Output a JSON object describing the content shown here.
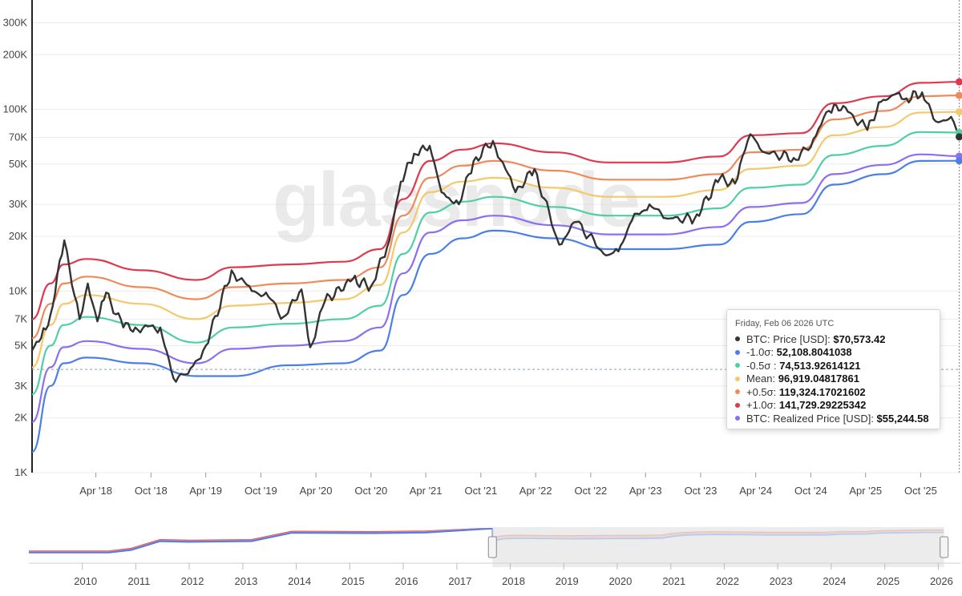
{
  "watermark": "glassnode",
  "chart_data": {
    "type": "line",
    "y_scale": "log",
    "ylim": [
      1000,
      400000
    ],
    "y_ticks": [
      {
        "value": 1000,
        "label": "1K"
      },
      {
        "value": 2000,
        "label": "2K"
      },
      {
        "value": 3000,
        "label": "3K"
      },
      {
        "value": 5000,
        "label": "5K"
      },
      {
        "value": 7000,
        "label": "7K"
      },
      {
        "value": 10000,
        "label": "10K"
      },
      {
        "value": 20000,
        "label": "20K"
      },
      {
        "value": 30000,
        "label": "30K"
      },
      {
        "value": 50000,
        "label": "50K"
      },
      {
        "value": 70000,
        "label": "70K"
      },
      {
        "value": 100000,
        "label": "100K"
      },
      {
        "value": 200000,
        "label": "200K"
      },
      {
        "value": 300000,
        "label": "300K"
      }
    ],
    "xlim": [
      "2017-09-01",
      "2026-02-10"
    ],
    "x_ticks": [
      {
        "date": "2018-04-01",
        "label": "Apr '18"
      },
      {
        "date": "2018-10-01",
        "label": "Oct '18"
      },
      {
        "date": "2019-04-01",
        "label": "Apr '19"
      },
      {
        "date": "2019-10-01",
        "label": "Oct '19"
      },
      {
        "date": "2020-04-01",
        "label": "Apr '20"
      },
      {
        "date": "2020-10-01",
        "label": "Oct '20"
      },
      {
        "date": "2021-04-01",
        "label": "Apr '21"
      },
      {
        "date": "2021-10-01",
        "label": "Oct '21"
      },
      {
        "date": "2022-04-01",
        "label": "Apr '22"
      },
      {
        "date": "2022-10-01",
        "label": "Oct '22"
      },
      {
        "date": "2023-04-01",
        "label": "Apr '23"
      },
      {
        "date": "2023-10-01",
        "label": "Oct '23"
      },
      {
        "date": "2024-04-01",
        "label": "Apr '24"
      },
      {
        "date": "2024-10-01",
        "label": "Oct '24"
      },
      {
        "date": "2025-04-01",
        "label": "Apr '25"
      },
      {
        "date": "2025-10-01",
        "label": "Oct '25"
      }
    ],
    "series": [
      {
        "key": "plus1",
        "color": "#e0384f",
        "x": [
          "2017-09-01",
          "2017-11-01",
          "2017-12-15",
          "2018-03-01",
          "2018-09-01",
          "2019-03-01",
          "2019-07-01",
          "2020-01-01",
          "2020-07-01",
          "2020-11-01",
          "2021-01-15",
          "2021-04-15",
          "2021-08-01",
          "2021-11-15",
          "2022-06-01",
          "2022-12-01",
          "2023-06-01",
          "2023-12-01",
          "2024-03-15",
          "2024-09-01",
          "2024-12-15",
          "2025-06-01",
          "2025-10-01",
          "2026-02-06"
        ],
        "y": [
          7000,
          11000,
          14000,
          15000,
          13000,
          11500,
          13500,
          14000,
          14500,
          17000,
          32000,
          52000,
          60000,
          65000,
          58000,
          51000,
          51000,
          55000,
          72000,
          74000,
          108000,
          118000,
          140000,
          141729
        ]
      },
      {
        "key": "plus05",
        "color": "#ef8a5a",
        "x": [
          "2017-09-01",
          "2017-11-01",
          "2017-12-15",
          "2018-03-01",
          "2018-09-01",
          "2019-03-01",
          "2019-07-01",
          "2020-01-01",
          "2020-07-01",
          "2020-11-01",
          "2021-01-15",
          "2021-04-15",
          "2021-08-01",
          "2021-11-15",
          "2022-06-01",
          "2022-12-01",
          "2023-06-01",
          "2023-12-01",
          "2024-03-15",
          "2024-09-01",
          "2024-12-15",
          "2025-06-01",
          "2025-10-01",
          "2026-02-06"
        ],
        "y": [
          5500,
          8500,
          11000,
          12000,
          10500,
          9000,
          10500,
          11000,
          11500,
          13500,
          26000,
          42000,
          49000,
          52000,
          46000,
          41000,
          41000,
          44000,
          58000,
          60000,
          88000,
          98000,
          118000,
          119324
        ]
      },
      {
        "key": "mean",
        "color": "#f5c86b",
        "x": [
          "2017-09-01",
          "2017-11-01",
          "2017-12-15",
          "2018-03-01",
          "2018-09-01",
          "2019-03-01",
          "2019-07-01",
          "2020-01-01",
          "2020-07-01",
          "2020-11-01",
          "2021-01-15",
          "2021-04-15",
          "2021-08-01",
          "2021-11-15",
          "2022-06-01",
          "2022-12-01",
          "2023-06-01",
          "2023-12-01",
          "2024-03-15",
          "2024-09-01",
          "2024-12-15",
          "2025-06-01",
          "2025-10-01",
          "2026-02-06"
        ],
        "y": [
          3800,
          6500,
          8500,
          9500,
          8500,
          7000,
          8300,
          8600,
          9000,
          10800,
          21000,
          35000,
          40000,
          42000,
          37000,
          33000,
          33000,
          36000,
          47000,
          49000,
          72000,
          80000,
          96000,
          96919
        ]
      },
      {
        "key": "minus05",
        "color": "#4fcfa3",
        "x": [
          "2017-09-01",
          "2017-11-01",
          "2017-12-15",
          "2018-03-01",
          "2018-09-01",
          "2019-03-01",
          "2019-07-01",
          "2020-01-01",
          "2020-07-01",
          "2020-11-01",
          "2021-01-15",
          "2021-04-15",
          "2021-08-01",
          "2021-11-15",
          "2022-06-01",
          "2022-12-01",
          "2023-06-01",
          "2023-12-01",
          "2024-03-15",
          "2024-09-01",
          "2024-12-15",
          "2025-06-01",
          "2025-10-01",
          "2026-02-06"
        ],
        "y": [
          2700,
          5000,
          6500,
          7200,
          6500,
          5200,
          6300,
          6600,
          7000,
          8300,
          16000,
          27000,
          31000,
          33000,
          29000,
          26000,
          26000,
          28500,
          37000,
          38500,
          56000,
          63000,
          75000,
          74513
        ]
      },
      {
        "key": "realized",
        "color": "#8b6ff0",
        "x": [
          "2017-09-01",
          "2017-11-01",
          "2017-12-15",
          "2018-03-01",
          "2018-09-01",
          "2019-03-01",
          "2019-07-01",
          "2020-01-01",
          "2020-07-01",
          "2020-11-01",
          "2021-01-15",
          "2021-04-15",
          "2021-08-01",
          "2021-11-15",
          "2022-06-01",
          "2022-12-01",
          "2023-06-01",
          "2023-12-01",
          "2024-03-15",
          "2024-09-01",
          "2024-12-15",
          "2025-06-01",
          "2025-10-01",
          "2026-02-06"
        ],
        "y": [
          1900,
          3800,
          4900,
          5300,
          4800,
          4000,
          4800,
          5000,
          5300,
          6300,
          12500,
          21000,
          24500,
          26000,
          23000,
          20500,
          20500,
          22500,
          29000,
          30500,
          44000,
          49500,
          56500,
          55244
        ]
      },
      {
        "key": "minus1",
        "color": "#4a7fe8",
        "x": [
          "2017-09-01",
          "2017-11-01",
          "2017-12-15",
          "2018-03-01",
          "2018-09-01",
          "2019-03-01",
          "2019-07-01",
          "2020-01-01",
          "2020-07-01",
          "2020-11-01",
          "2021-01-15",
          "2021-04-15",
          "2021-08-01",
          "2021-11-15",
          "2022-06-01",
          "2022-12-01",
          "2023-06-01",
          "2023-12-01",
          "2024-03-15",
          "2024-09-01",
          "2024-12-15",
          "2025-06-01",
          "2025-10-01",
          "2026-02-06"
        ],
        "y": [
          1300,
          3000,
          4000,
          4300,
          4000,
          3400,
          3400,
          3900,
          4000,
          4700,
          9500,
          16000,
          19500,
          21500,
          19500,
          17000,
          17000,
          18000,
          24000,
          26500,
          38500,
          44000,
          52000,
          52108
        ]
      },
      {
        "key": "price",
        "color": "#333333",
        "x": [
          "2017-09-01",
          "2017-10-01",
          "2017-11-01",
          "2017-12-17",
          "2018-02-06",
          "2018-03-05",
          "2018-04-06",
          "2018-05-05",
          "2018-07-01",
          "2018-08-10",
          "2018-11-01",
          "2018-12-15",
          "2019-02-01",
          "2019-04-01",
          "2019-06-26",
          "2019-09-01",
          "2019-10-26",
          "2019-12-15",
          "2020-02-13",
          "2020-03-13",
          "2020-05-01",
          "2020-08-01",
          "2020-10-01",
          "2020-12-01",
          "2021-01-08",
          "2021-02-21",
          "2021-04-14",
          "2021-05-23",
          "2021-07-20",
          "2021-09-07",
          "2021-11-10",
          "2022-01-24",
          "2022-03-28",
          "2022-06-18",
          "2022-08-15",
          "2022-11-21",
          "2023-01-01",
          "2023-02-15",
          "2023-04-14",
          "2023-06-15",
          "2023-09-11",
          "2023-12-05",
          "2024-01-23",
          "2024-03-14",
          "2024-05-01",
          "2024-08-05",
          "2024-10-01",
          "2024-11-13",
          "2024-12-17",
          "2025-02-01",
          "2025-04-07",
          "2025-05-22",
          "2025-07-14",
          "2025-08-15",
          "2025-10-06",
          "2025-11-20",
          "2025-12-15",
          "2026-01-10",
          "2026-02-06"
        ],
        "y": [
          4700,
          5500,
          7400,
          19000,
          7000,
          11000,
          6800,
          9800,
          6300,
          6300,
          6300,
          3300,
          3500,
          5000,
          13000,
          10000,
          9300,
          7200,
          10200,
          4900,
          8800,
          11600,
          10600,
          19000,
          40000,
          57000,
          63000,
          35000,
          30000,
          52000,
          67000,
          35000,
          47000,
          18000,
          24000,
          15700,
          16500,
          24500,
          30000,
          25000,
          25000,
          42000,
          39000,
          73000,
          58000,
          54000,
          62000,
          90000,
          106000,
          97000,
          77000,
          110000,
          122000,
          115000,
          124000,
          86000,
          87000,
          91000,
          70573
        ]
      }
    ],
    "navigator": {
      "xlim": [
        "2009-01-01",
        "2026-06-01"
      ],
      "range_start": "2017-09-01",
      "range_end": "2026-02-10",
      "ticks": [
        {
          "date": "2010-01-01",
          "label": "2010"
        },
        {
          "date": "2011-01-01",
          "label": "2011"
        },
        {
          "date": "2012-01-01",
          "label": "2012"
        },
        {
          "date": "2013-01-01",
          "label": "2013"
        },
        {
          "date": "2014-01-01",
          "label": "2014"
        },
        {
          "date": "2015-01-01",
          "label": "2015"
        },
        {
          "date": "2016-01-01",
          "label": "2016"
        },
        {
          "date": "2017-01-01",
          "label": "2017"
        },
        {
          "date": "2018-01-01",
          "label": "2018"
        },
        {
          "date": "2019-01-01",
          "label": "2019"
        },
        {
          "date": "2020-01-01",
          "label": "2020"
        },
        {
          "date": "2021-01-01",
          "label": "2021"
        },
        {
          "date": "2022-01-01",
          "label": "2022"
        },
        {
          "date": "2023-01-01",
          "label": "2023"
        },
        {
          "date": "2024-01-01",
          "label": "2024"
        },
        {
          "date": "2025-01-01",
          "label": "2025"
        },
        {
          "date": "2026-01-01",
          "label": "2026"
        }
      ]
    }
  },
  "tooltip": {
    "date": "Friday, Feb 06 2026 UTC",
    "rows": [
      {
        "color": "#333333",
        "label": "BTC: Price [USD]: ",
        "value": "$70,573.42"
      },
      {
        "color": "#4a7fe8",
        "label": "-1.0σ: ",
        "value": "52,108.8041038"
      },
      {
        "color": "#4fcfa3",
        "label": "-0.5σ : ",
        "value": "74,513.92614121"
      },
      {
        "color": "#f5c86b",
        "label": "Mean: ",
        "value": "96,919.04817861"
      },
      {
        "color": "#ef8a5a",
        "label": "+0.5σ: ",
        "value": "119,324.17021602"
      },
      {
        "color": "#e0384f",
        "label": "+1.0σ: ",
        "value": "141,729.29225342"
      },
      {
        "color": "#8b6ff0",
        "label": "BTC: Realized Price [USD]: ",
        "value": "$55,244.58"
      }
    ]
  }
}
